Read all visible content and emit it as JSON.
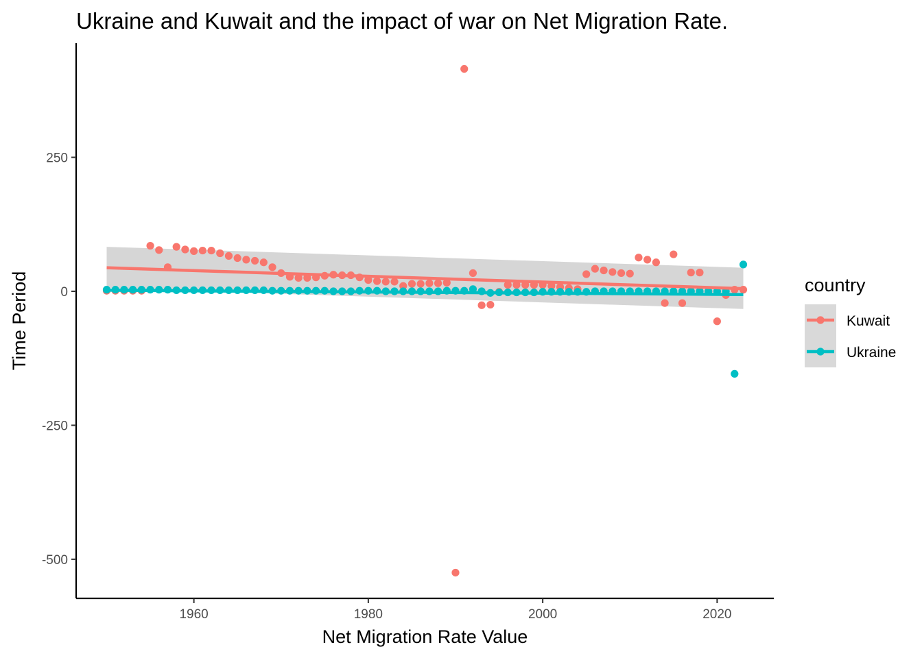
{
  "chart_data": {
    "type": "scatter",
    "title": "Ukraine and Kuwait and the impact of war on Net Migration Rate.",
    "xlabel": "Net Migration Rate Value",
    "ylabel": "Time Period",
    "xlim": [
      1946.5,
      2026.5
    ],
    "ylim": [
      -573,
      463
    ],
    "x_ticks": [
      1960,
      1980,
      2000,
      2020
    ],
    "y_ticks": [
      250,
      0,
      -250,
      -500
    ],
    "x_tick_labels": [
      "1960",
      "1980",
      "2000",
      "2020"
    ],
    "y_tick_labels": [
      "250",
      "0",
      "-250",
      "-500"
    ],
    "grid": false,
    "legend": {
      "title": "country",
      "position": "right",
      "entries": [
        "Kuwait",
        "Ukraine"
      ]
    },
    "series": [
      {
        "name": "Kuwait",
        "color": "#F8766D",
        "x": [
          1950,
          1951,
          1952,
          1953,
          1954,
          1955,
          1956,
          1957,
          1958,
          1959,
          1960,
          1961,
          1962,
          1963,
          1964,
          1965,
          1966,
          1967,
          1968,
          1969,
          1970,
          1971,
          1972,
          1973,
          1974,
          1975,
          1976,
          1977,
          1978,
          1979,
          1980,
          1981,
          1982,
          1983,
          1984,
          1985,
          1986,
          1987,
          1988,
          1989,
          1990,
          1991,
          1992,
          1993,
          1994,
          1995,
          1996,
          1997,
          1998,
          1999,
          2000,
          2001,
          2002,
          2003,
          2004,
          2005,
          2006,
          2007,
          2008,
          2009,
          2010,
          2011,
          2012,
          2013,
          2014,
          2015,
          2016,
          2017,
          2018,
          2019,
          2020,
          2021,
          2022,
          2023
        ],
        "y": [
          1,
          1,
          1,
          1,
          1,
          85,
          77,
          45,
          83,
          78,
          75,
          76,
          76,
          71,
          66,
          62,
          59,
          57,
          54,
          45,
          34,
          27,
          25,
          25,
          26,
          29,
          31,
          30,
          30,
          26,
          21,
          19,
          18,
          18,
          10,
          14,
          14,
          15,
          15,
          16,
          -525,
          415,
          34,
          -26,
          -25,
          -1,
          12,
          12,
          12,
          12,
          12,
          10,
          8,
          6,
          4,
          32,
          42,
          39,
          36,
          34,
          33,
          63,
          59,
          54,
          -22,
          69,
          -22,
          35,
          35,
          0,
          -56,
          -7,
          3,
          3
        ],
        "trend": {
          "x": [
            1950,
            2023
          ],
          "y": [
            44,
            5
          ]
        }
      },
      {
        "name": "Ukraine",
        "color": "#00BFC4",
        "x": [
          1950,
          1951,
          1952,
          1953,
          1954,
          1955,
          1956,
          1957,
          1958,
          1959,
          1960,
          1961,
          1962,
          1963,
          1964,
          1965,
          1966,
          1967,
          1968,
          1969,
          1970,
          1971,
          1972,
          1973,
          1974,
          1975,
          1976,
          1977,
          1978,
          1979,
          1980,
          1981,
          1982,
          1983,
          1984,
          1985,
          1986,
          1987,
          1988,
          1989,
          1990,
          1991,
          1992,
          1993,
          1994,
          1995,
          1996,
          1997,
          1998,
          1999,
          2000,
          2001,
          2002,
          2003,
          2004,
          2005,
          2006,
          2007,
          2008,
          2009,
          2010,
          2011,
          2012,
          2013,
          2014,
          2015,
          2016,
          2017,
          2018,
          2019,
          2020,
          2021,
          2022,
          2023
        ],
        "y": [
          3,
          3,
          3,
          3,
          3,
          3,
          3,
          3,
          2,
          2,
          2,
          2,
          2,
          2,
          2,
          2,
          2,
          2,
          2,
          1,
          1,
          1,
          1,
          1,
          1,
          1,
          0,
          0,
          0,
          1,
          1,
          1,
          0,
          0,
          0,
          0,
          0,
          0,
          0,
          1,
          1,
          1,
          4,
          0,
          -3,
          -2,
          -2,
          -2,
          -2,
          -2,
          -1,
          -1,
          -1,
          -1,
          -1,
          -1,
          0,
          0,
          0,
          0,
          0,
          0,
          0,
          0,
          0,
          0,
          0,
          0,
          0,
          0,
          0,
          0,
          -154,
          50
        ],
        "trend": {
          "x": [
            1950,
            2023
          ],
          "y": [
            2,
            -6
          ]
        }
      }
    ],
    "confidence_band": {
      "x": [
        1950,
        2023
      ],
      "upper": [
        83,
        44
      ],
      "lower": [
        6,
        -33
      ]
    }
  }
}
